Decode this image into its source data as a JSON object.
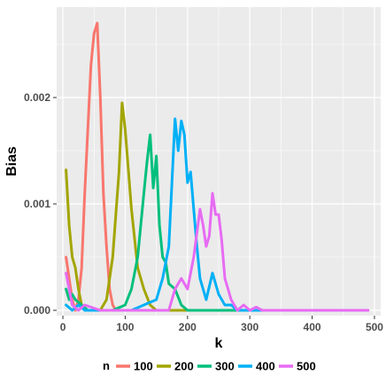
{
  "chart_data": {
    "type": "line",
    "title": "",
    "xlabel": "k",
    "ylabel": "Bias",
    "xlim": [
      -10,
      510
    ],
    "ylim": [
      -5e-05,
      0.00285
    ],
    "x_ticks": [
      0,
      100,
      200,
      300,
      400,
      500
    ],
    "x_tick_labels": [
      "0",
      "100",
      "200",
      "300",
      "400",
      "500"
    ],
    "y_ticks": [
      0,
      0.001,
      0.002
    ],
    "y_tick_labels": [
      "0.000",
      "0.001",
      "0.002"
    ],
    "grid": true,
    "legend": {
      "title": "n",
      "position": "bottom"
    },
    "series": [
      {
        "name": "100",
        "color": "#F8766D",
        "x": [
          5,
          10,
          15,
          20,
          25,
          30,
          35,
          40,
          45,
          50,
          55,
          60,
          65,
          70,
          75,
          80,
          85,
          90,
          95,
          99
        ],
        "y": [
          0.0005,
          0.0003,
          0.0001,
          0.0,
          0.0001,
          0.0004,
          0.0011,
          0.0017,
          0.0023,
          0.0026,
          0.0027,
          0.002,
          0.0011,
          0.0006,
          0.0002,
          5e-05,
          0.0,
          0.0,
          0.0,
          0.0
        ]
      },
      {
        "name": "200",
        "color": "#A3A500",
        "x": [
          5,
          10,
          15,
          20,
          25,
          30,
          40,
          50,
          60,
          70,
          80,
          90,
          95,
          100,
          110,
          120,
          130,
          140,
          150,
          160,
          170,
          180,
          190,
          200
        ],
        "y": [
          0.00132,
          0.0008,
          0.0005,
          0.0004,
          0.0002,
          5e-05,
          0.0,
          0.0,
          0.0,
          0.0001,
          0.0005,
          0.0013,
          0.00195,
          0.0017,
          0.00095,
          0.0004,
          0.0002,
          5e-05,
          0.0,
          0.0,
          0.0,
          0.0,
          0.0,
          0.0
        ]
      },
      {
        "name": "300",
        "color": "#00BF7D",
        "x": [
          5,
          10,
          15,
          20,
          30,
          40,
          60,
          80,
          100,
          110,
          120,
          130,
          135,
          140,
          145,
          150,
          155,
          160,
          165,
          170,
          180,
          190,
          200,
          220,
          240,
          260,
          280,
          300
        ],
        "y": [
          0.0002,
          0.0001,
          0.00015,
          0.0001,
          5e-05,
          0.0,
          0.0,
          0.0,
          5e-05,
          0.0002,
          0.0005,
          0.0011,
          0.0014,
          0.00165,
          0.00115,
          0.00145,
          0.0008,
          0.0005,
          0.00045,
          0.00025,
          0.0002,
          5e-05,
          0.0,
          0.0,
          0.0,
          0.0,
          0.0,
          0.0
        ]
      },
      {
        "name": "400",
        "color": "#00B0F6",
        "x": [
          5,
          15,
          25,
          35,
          50,
          80,
          110,
          130,
          150,
          160,
          170,
          175,
          180,
          185,
          190,
          195,
          200,
          205,
          210,
          215,
          220,
          230,
          240,
          250,
          260,
          270,
          280,
          300,
          320,
          350,
          380,
          400
        ],
        "y": [
          5e-05,
          0.0,
          5e-05,
          0.0,
          0.0,
          0.0,
          0.0,
          5e-05,
          0.0001,
          0.0003,
          0.0006,
          0.0012,
          0.0018,
          0.0015,
          0.00178,
          0.00165,
          0.0012,
          0.0013,
          0.00095,
          0.0006,
          0.0003,
          0.0001,
          0.00035,
          0.00015,
          5e-05,
          5e-05,
          0.0,
          0.0,
          0.0,
          0.0,
          0.0,
          0.0
        ]
      },
      {
        "name": "500",
        "color": "#E76BF3",
        "x": [
          5,
          15,
          25,
          35,
          60,
          100,
          140,
          170,
          180,
          190,
          200,
          210,
          220,
          225,
          230,
          235,
          240,
          245,
          250,
          255,
          260,
          265,
          270,
          280,
          290,
          300,
          310,
          320,
          330,
          340,
          360,
          380,
          400,
          420,
          440,
          460,
          480,
          490
        ],
        "y": [
          0.00035,
          5e-05,
          0.0,
          5e-05,
          0.0,
          0.0,
          0.0,
          0.0,
          0.0002,
          0.0003,
          0.0002,
          0.0005,
          0.00095,
          0.0008,
          0.0006,
          0.0007,
          0.0011,
          0.0009,
          0.0009,
          0.00065,
          0.0003,
          0.0002,
          0.0001,
          0.0,
          5e-05,
          0.0,
          3e-05,
          0.0,
          0.0,
          0.0,
          0.0,
          0.0,
          0.0,
          0.0,
          0.0,
          0.0,
          0.0,
          0.0
        ]
      }
    ]
  }
}
